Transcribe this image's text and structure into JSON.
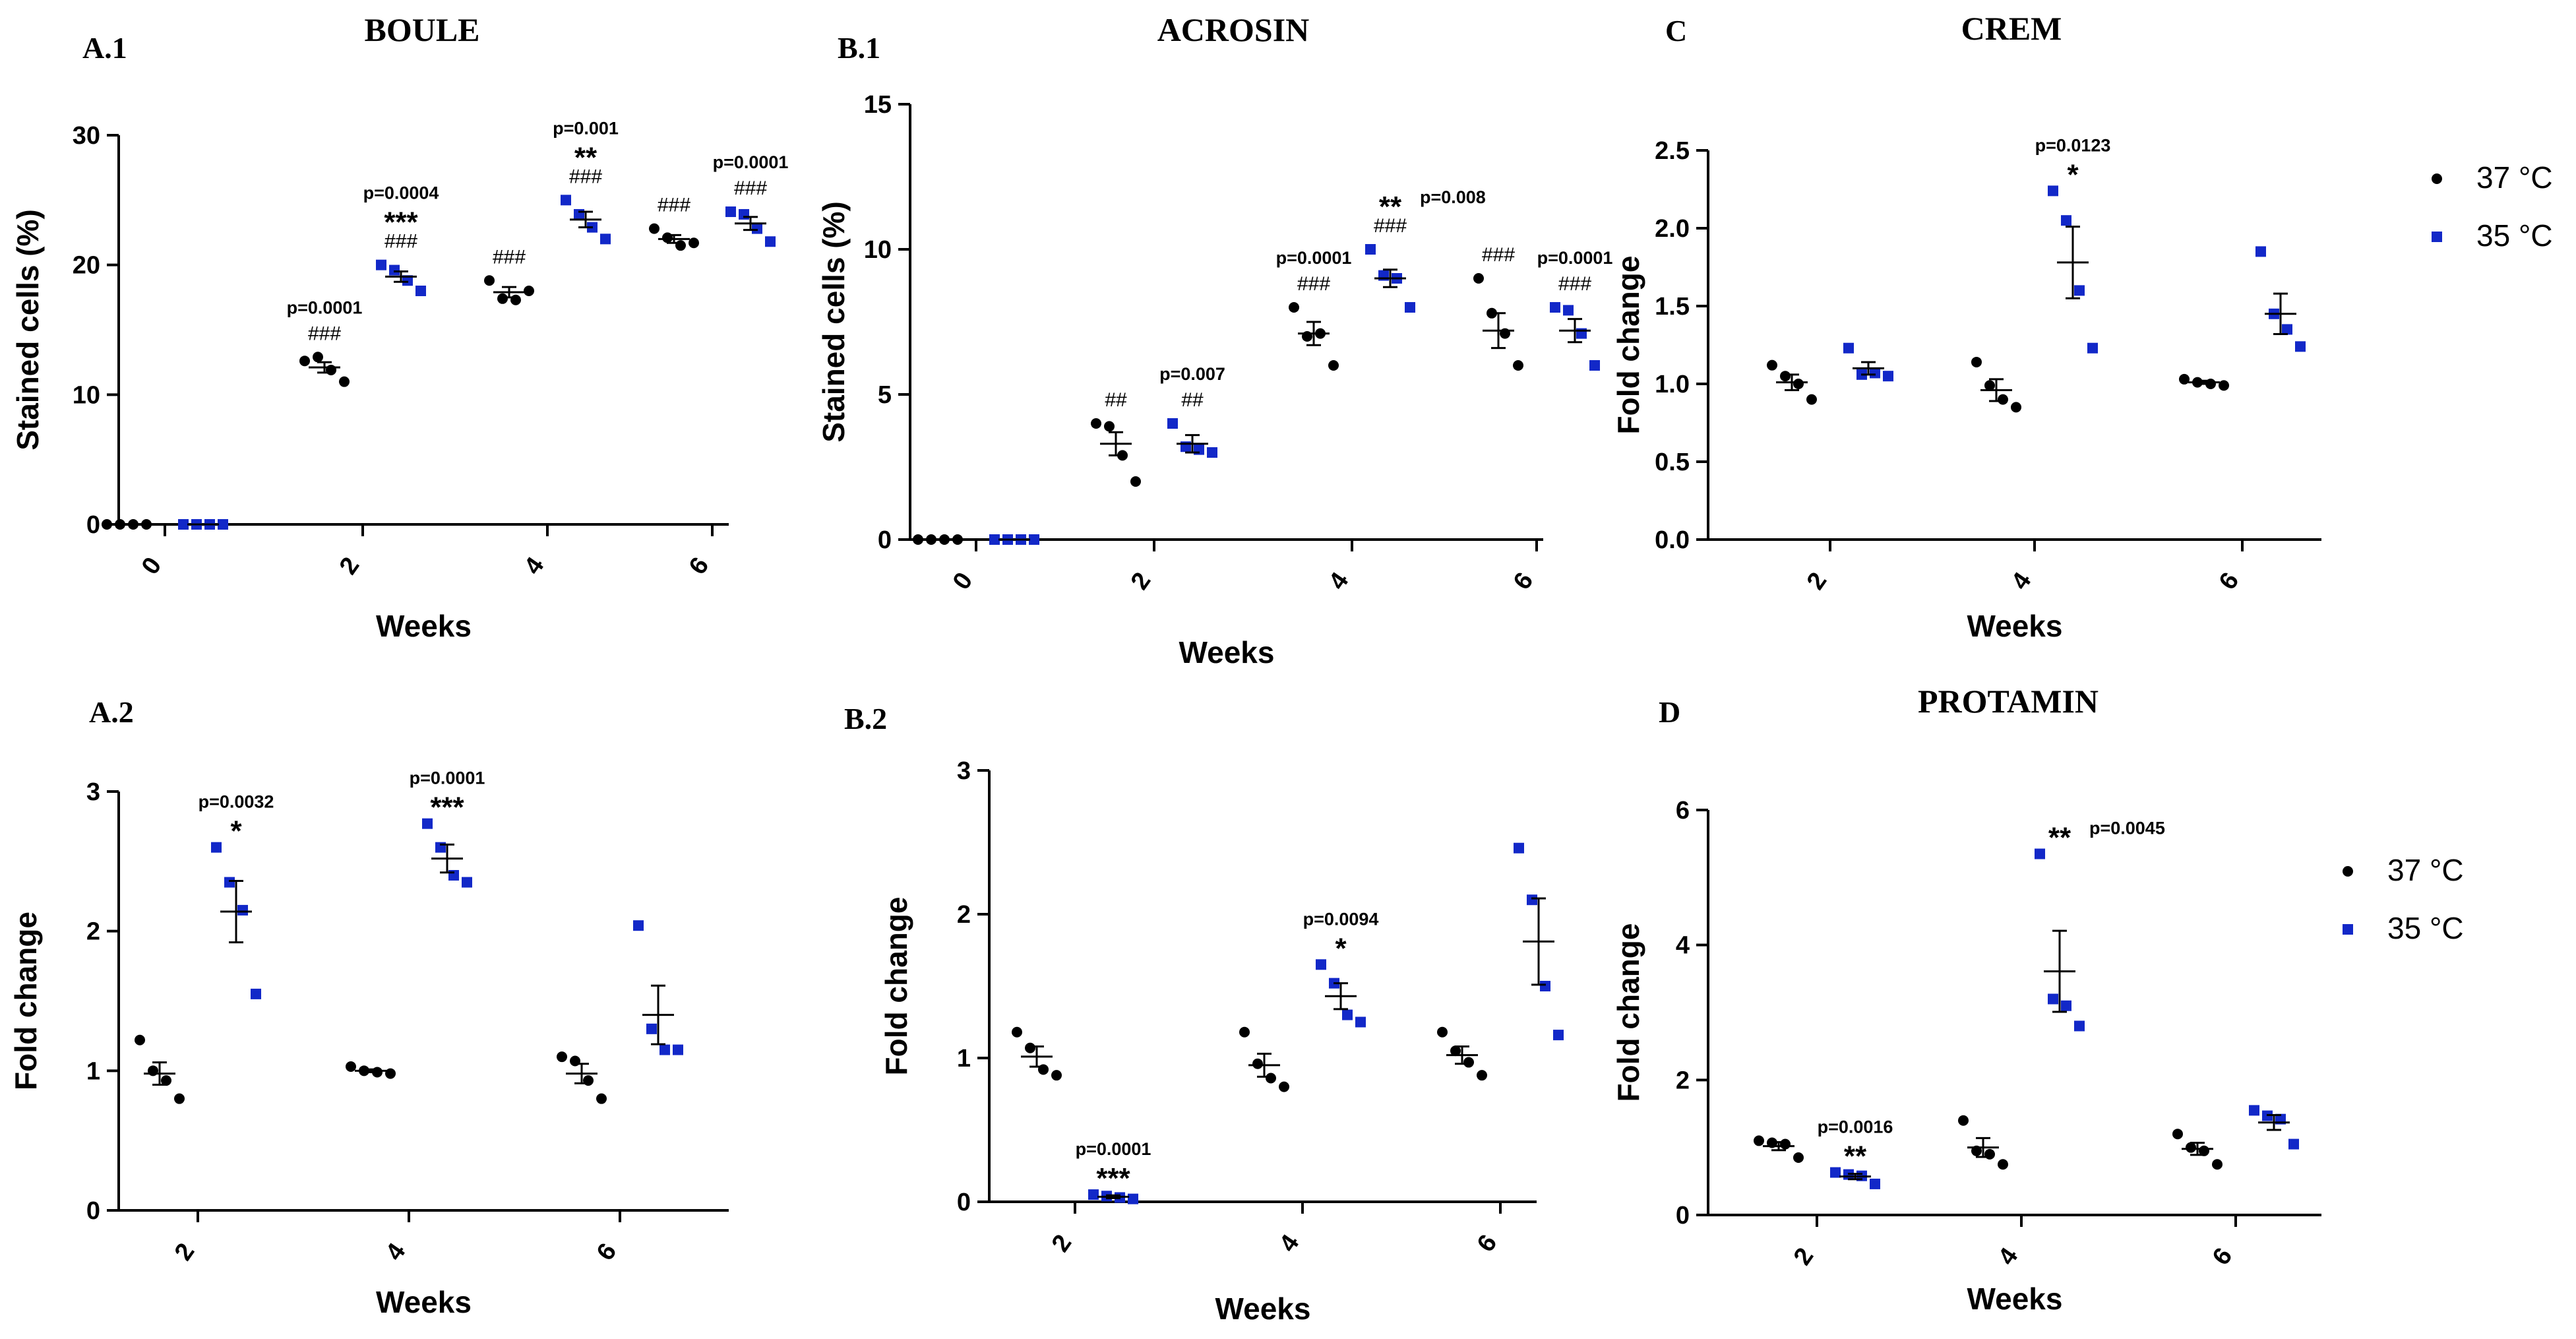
{
  "colors": {
    "c37": "#000000",
    "c35": "#1228c8"
  },
  "legend": [
    {
      "label": "37 °C",
      "color": "#000000",
      "marker": "dot"
    },
    {
      "label": "35 °C",
      "color": "#1228c8",
      "marker": "square"
    }
  ],
  "chart_data": [
    {
      "id": "A1",
      "letter": "A.1",
      "title": "BOULE",
      "type": "scatter",
      "xlabel": "Weeks",
      "ylabel": "Stained cells (%)",
      "categories": [
        "0",
        "2",
        "4",
        "6"
      ],
      "ylim": [
        0,
        30
      ],
      "yticks": [
        0,
        10,
        20,
        30
      ],
      "series": [
        {
          "name": "37 °C",
          "marker": "dot",
          "points": [
            [
              0,
              0,
              0,
              0
            ],
            [
              12.6,
              12.9,
              11.9,
              11.0
            ],
            [
              18.8,
              17.4,
              17.3,
              18.0
            ],
            [
              22.8,
              22.1,
              21.5,
              21.7
            ]
          ],
          "mean": [
            0,
            12.1,
            17.9,
            22.0
          ],
          "sem": [
            0,
            0.4,
            0.4,
            0.3
          ]
        },
        {
          "name": "35 °C",
          "marker": "square",
          "points": [
            [
              0,
              0,
              0,
              0
            ],
            [
              20.0,
              19.6,
              18.8,
              18.0
            ],
            [
              25.0,
              23.9,
              22.9,
              22.0
            ],
            [
              24.1,
              23.9,
              22.8,
              21.8
            ]
          ],
          "mean": [
            0,
            19.1,
            23.5,
            23.2
          ],
          "sem": [
            0,
            0.4,
            0.6,
            0.5
          ]
        }
      ],
      "annotations": [
        {
          "cat": 1,
          "series": 0,
          "lines": [
            "###",
            "p=0.0001"
          ]
        },
        {
          "cat": 1,
          "series": 1,
          "lines": [
            "###",
            "***",
            "p=0.0004"
          ]
        },
        {
          "cat": 2,
          "series": 0,
          "lines": [
            "###"
          ]
        },
        {
          "cat": 2,
          "series": 1,
          "lines": [
            "###",
            "**",
            "p=0.001"
          ]
        },
        {
          "cat": 3,
          "series": 0,
          "lines": [
            "###"
          ]
        },
        {
          "cat": 3,
          "series": 1,
          "lines": [
            "###",
            "p=0.0001"
          ]
        }
      ]
    },
    {
      "id": "B1",
      "letter": "B.1",
      "title": "ACROSIN",
      "type": "scatter",
      "xlabel": "Weeks",
      "ylabel": "Stained cells (%)",
      "categories": [
        "0",
        "2",
        "4",
        "6"
      ],
      "ylim": [
        0,
        15
      ],
      "yticks": [
        0,
        5,
        10,
        15
      ],
      "series": [
        {
          "name": "37 °C",
          "marker": "dot",
          "points": [
            [
              0,
              0,
              0,
              0
            ],
            [
              4.0,
              3.9,
              2.9,
              2.0
            ],
            [
              8.0,
              7.0,
              7.1,
              6.0
            ],
            [
              9.0,
              7.8,
              7.1,
              6.0
            ]
          ],
          "mean": [
            0,
            3.3,
            7.1,
            7.2
          ],
          "sem": [
            0,
            0.4,
            0.4,
            0.6
          ]
        },
        {
          "name": "35 °C",
          "marker": "square",
          "points": [
            [
              0,
              0,
              0,
              0
            ],
            [
              4.0,
              3.2,
              3.1,
              3.0
            ],
            [
              10.0,
              9.1,
              9.0,
              8.0
            ],
            [
              8.0,
              7.9,
              7.1,
              6.0
            ]
          ],
          "mean": [
            0,
            3.3,
            9.0,
            7.2
          ],
          "sem": [
            0,
            0.3,
            0.3,
            0.4
          ]
        }
      ],
      "annotations": [
        {
          "cat": 1,
          "series": 0,
          "lines": [
            "##"
          ]
        },
        {
          "cat": 1,
          "series": 1,
          "lines": [
            "##",
            "p=0.007"
          ]
        },
        {
          "cat": 2,
          "series": 0,
          "lines": [
            "###",
            "p=0.0001"
          ]
        },
        {
          "cat": 2,
          "series": 1,
          "lines": [
            "###",
            "**"
          ],
          "side": "p=0.008"
        },
        {
          "cat": 3,
          "series": 0,
          "lines": [
            "###"
          ]
        },
        {
          "cat": 3,
          "series": 1,
          "lines": [
            "###",
            "p=0.0001"
          ]
        }
      ]
    },
    {
      "id": "C",
      "letter": "C",
      "title": "CREM",
      "type": "scatter",
      "xlabel": "Weeks",
      "ylabel": "Fold change",
      "categories": [
        "2",
        "4",
        "6"
      ],
      "ylim": [
        0,
        2.5
      ],
      "yticks": [
        0.0,
        0.5,
        1.0,
        1.5,
        2.0,
        2.5
      ],
      "series": [
        {
          "name": "37 °C",
          "marker": "dot",
          "points": [
            [
              1.12,
              1.05,
              1.0,
              0.9
            ],
            [
              1.14,
              0.99,
              0.9,
              0.85
            ],
            [
              1.03,
              1.01,
              1.0,
              0.99
            ]
          ],
          "mean": [
            1.01,
            0.96,
            1.01
          ],
          "sem": [
            0.05,
            0.07,
            0.01
          ]
        },
        {
          "name": "35 °C",
          "marker": "square",
          "points": [
            [
              1.23,
              1.06,
              1.07,
              1.05
            ],
            [
              2.24,
              2.05,
              1.6,
              1.23
            ],
            [
              1.85,
              1.45,
              1.35,
              1.24
            ]
          ],
          "mean": [
            1.1,
            1.78,
            1.45
          ],
          "sem": [
            0.04,
            0.23,
            0.13
          ]
        }
      ],
      "annotations": [
        {
          "cat": 1,
          "series": 1,
          "lines": [
            "*",
            "p=0.0123"
          ]
        }
      ]
    },
    {
      "id": "A2",
      "letter": "A.2",
      "title": "",
      "type": "scatter",
      "xlabel": "Weeks",
      "ylabel": "Fold change",
      "categories": [
        "2",
        "4",
        "6"
      ],
      "ylim": [
        0,
        3
      ],
      "yticks": [
        0,
        1,
        2,
        3
      ],
      "series": [
        {
          "name": "37 °C",
          "marker": "dot",
          "points": [
            [
              1.22,
              1.0,
              0.93,
              0.8
            ],
            [
              1.03,
              1.0,
              0.99,
              0.98
            ],
            [
              1.1,
              1.07,
              0.93,
              0.8
            ]
          ],
          "mean": [
            0.98,
            1.0,
            0.98
          ],
          "sem": [
            0.08,
            0.01,
            0.07
          ]
        },
        {
          "name": "35 °C",
          "marker": "square",
          "points": [
            [
              2.6,
              2.35,
              2.15,
              1.55
            ],
            [
              2.77,
              2.6,
              2.4,
              2.35
            ],
            [
              2.04,
              1.3,
              1.15,
              1.15
            ]
          ],
          "mean": [
            2.14,
            2.52,
            1.4
          ],
          "sem": [
            0.22,
            0.1,
            0.21
          ]
        }
      ],
      "annotations": [
        {
          "cat": 0,
          "series": 1,
          "lines": [
            "*",
            "p=0.0032"
          ]
        },
        {
          "cat": 1,
          "series": 1,
          "lines": [
            "***",
            "p=0.0001"
          ]
        }
      ]
    },
    {
      "id": "B2",
      "letter": "B.2",
      "title": "",
      "type": "scatter",
      "xlabel": "Weeks",
      "ylabel": "Fold change",
      "categories": [
        "2",
        "4",
        "6"
      ],
      "ylim": [
        0,
        3
      ],
      "yticks": [
        0,
        1,
        2,
        3
      ],
      "series": [
        {
          "name": "37 °C",
          "marker": "dot",
          "points": [
            [
              1.18,
              1.07,
              0.92,
              0.88
            ],
            [
              1.18,
              0.96,
              0.86,
              0.8
            ],
            [
              1.18,
              1.05,
              0.97,
              0.88
            ]
          ],
          "mean": [
            1.01,
            0.95,
            1.02
          ],
          "sem": [
            0.07,
            0.08,
            0.06
          ]
        },
        {
          "name": "35 °C",
          "marker": "square",
          "points": [
            [
              0.05,
              0.04,
              0.03,
              0.02
            ],
            [
              1.65,
              1.52,
              1.3,
              1.25
            ],
            [
              2.46,
              2.1,
              1.5,
              1.16
            ]
          ],
          "mean": [
            0.035,
            1.43,
            1.81
          ],
          "sem": [
            0.01,
            0.09,
            0.3
          ]
        }
      ],
      "annotations": [
        {
          "cat": 0,
          "series": 1,
          "lines": [
            "***",
            "p=0.0001"
          ]
        },
        {
          "cat": 1,
          "series": 1,
          "lines": [
            "*",
            "p=0.0094"
          ]
        }
      ]
    },
    {
      "id": "D",
      "letter": "D",
      "title": "PROTAMIN",
      "type": "scatter",
      "xlabel": "Weeks",
      "ylabel": "Fold change",
      "categories": [
        "2",
        "4",
        "6"
      ],
      "ylim": [
        0,
        6
      ],
      "yticks": [
        0,
        2,
        4,
        6
      ],
      "series": [
        {
          "name": "37 °C",
          "marker": "dot",
          "points": [
            [
              1.1,
              1.07,
              1.05,
              0.85
            ],
            [
              1.4,
              0.95,
              0.9,
              0.75
            ],
            [
              1.2,
              1.0,
              0.95,
              0.75
            ]
          ],
          "mean": [
            1.02,
            1.0,
            0.98
          ],
          "sem": [
            0.06,
            0.14,
            0.09
          ]
        },
        {
          "name": "35 °C",
          "marker": "square",
          "points": [
            [
              0.63,
              0.6,
              0.58,
              0.46
            ],
            [
              5.35,
              3.2,
              3.1,
              2.8
            ],
            [
              1.55,
              1.47,
              1.42,
              1.05
            ]
          ],
          "mean": [
            0.57,
            3.61,
            1.37
          ],
          "sem": [
            0.04,
            0.6,
            0.11
          ]
        }
      ],
      "annotations": [
        {
          "cat": 0,
          "series": 1,
          "lines": [
            "**",
            "p=0.0016"
          ]
        },
        {
          "cat": 1,
          "series": 1,
          "lines": [
            "**"
          ],
          "side": "p=0.0045"
        }
      ]
    }
  ]
}
